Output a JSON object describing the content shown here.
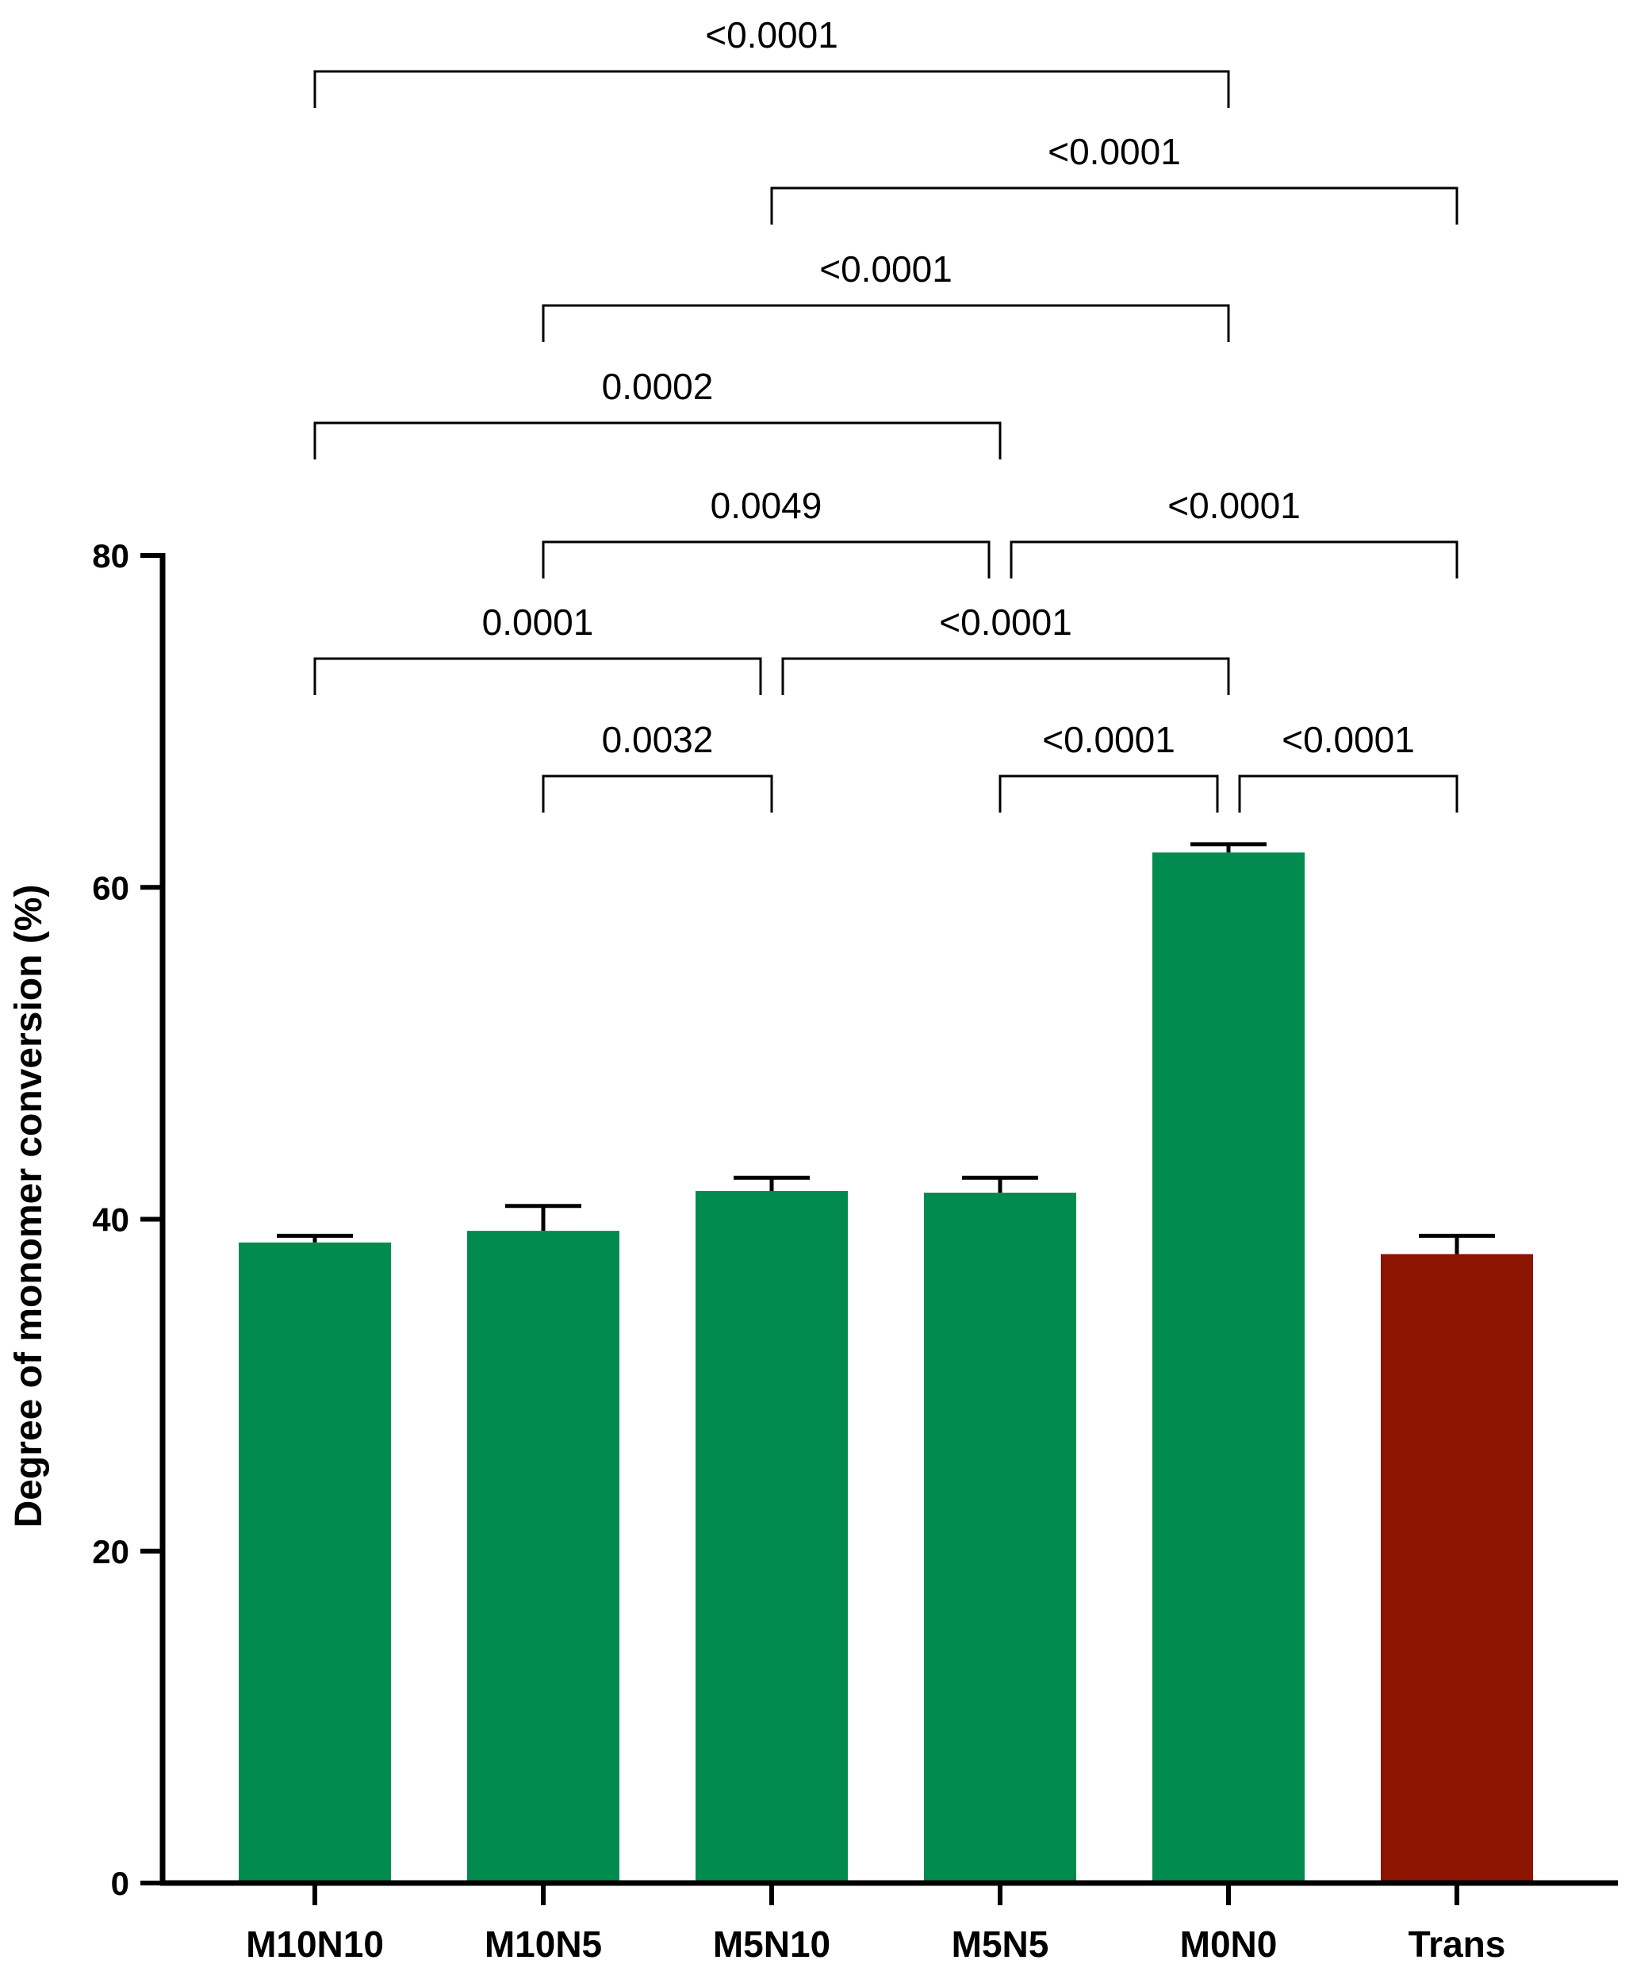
{
  "chart_data": {
    "type": "bar",
    "title": "",
    "xlabel": "",
    "ylabel": "Degree of monomer conversion (%)",
    "ylim": [
      0,
      80
    ],
    "yticks": [
      0,
      20,
      40,
      60,
      80
    ],
    "grid": false,
    "categories": [
      "M10N10",
      "M10N5",
      "M5N10",
      "M5N5",
      "M0N0",
      "Trans"
    ],
    "values": [
      38.6,
      39.3,
      41.7,
      41.6,
      62.1,
      37.9
    ],
    "errors": [
      0.4,
      1.5,
      0.8,
      0.9,
      0.5,
      1.1
    ],
    "colors": [
      "#028b4f",
      "#028b4f",
      "#028b4f",
      "#028b4f",
      "#028b4f",
      "#8c1400"
    ],
    "comparisons": [
      {
        "from": 0,
        "to": 4,
        "p": "<0.0001"
      },
      {
        "from": 2,
        "to": 5,
        "p": "<0.0001"
      },
      {
        "from": 1,
        "to": 4,
        "p": "<0.0001"
      },
      {
        "from": 0,
        "to": 3,
        "p": "0.0002"
      },
      {
        "from": 1,
        "to": 3,
        "p": "0.0049"
      },
      {
        "from": 3,
        "to": 5,
        "p": "<0.0001"
      },
      {
        "from": 0,
        "to": 2,
        "p": "0.0001"
      },
      {
        "from": 2,
        "to": 4,
        "p": "<0.0001"
      },
      {
        "from": 1,
        "to": 2,
        "p": "0.0032"
      },
      {
        "from": 3,
        "to": 4,
        "p": "<0.0001"
      },
      {
        "from": 4,
        "to": 5,
        "p": "<0.0001"
      }
    ]
  }
}
